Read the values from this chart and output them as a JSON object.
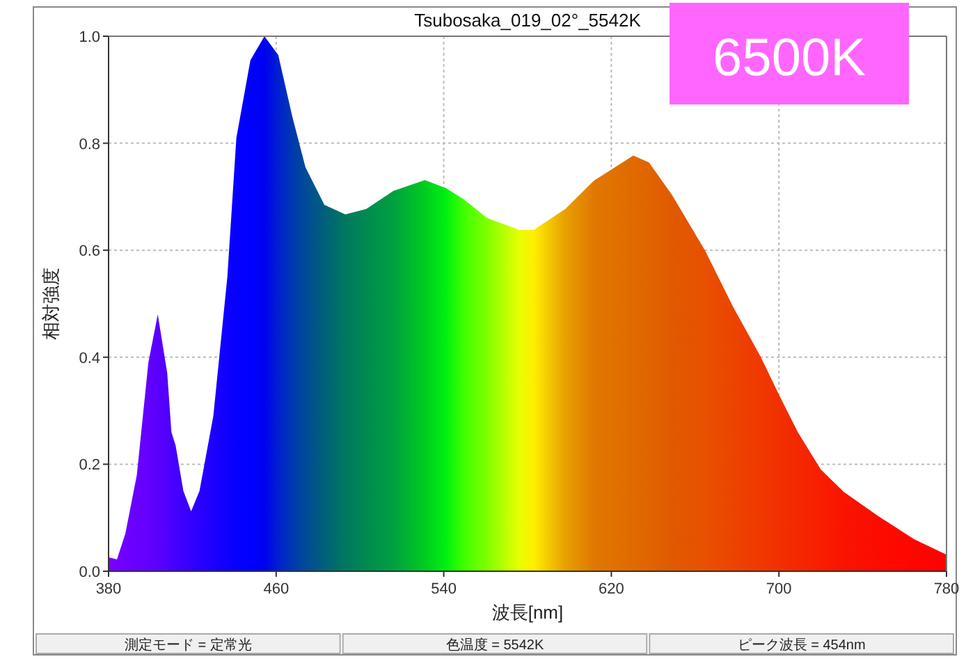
{
  "chart_data": {
    "type": "area",
    "title": "Tsubosaka_019_02°_5542K",
    "xlabel": "波長[nm]",
    "ylabel": "相対強度",
    "annotations": [
      "6500K",
      "測定モード = 定常光",
      "色温度 = 5542K",
      "ピーク波長 = 454nm"
    ],
    "xlim": [
      380,
      780
    ],
    "xticks": [
      380,
      460,
      540,
      620,
      700,
      780
    ],
    "ylim": [
      0,
      1.0
    ],
    "yticks": [
      {
        "value": 0,
        "label": "0.0"
      },
      {
        "value": 0.2,
        "label": "0.2"
      },
      {
        "value": 0.4,
        "label": "0.4"
      },
      {
        "value": 0.6,
        "label": "0.6"
      },
      {
        "value": 0.8,
        "label": "0.8"
      },
      {
        "value": 1.0,
        "label": "1.0"
      }
    ],
    "grid": true,
    "series": [
      {
        "x": [
          380,
          384,
          388,
          393.5,
          399,
          403.5,
          408,
          410,
          412,
          415.7,
          419.4,
          423.4,
          430,
          436.7,
          441,
          447.7,
          454.4,
          461,
          467.7,
          474,
          483,
          493,
          503,
          516,
          531,
          541,
          549.6,
          560.7,
          576,
          583,
          598,
          611.7,
          630.5,
          638,
          649,
          664.8,
          678,
          691.4,
          700,
          709,
          720,
          731,
          747,
          764.5,
          780
        ],
        "values": [
          0.026,
          0.022,
          0.07,
          0.18,
          0.39,
          0.48,
          0.37,
          0.26,
          0.235,
          0.15,
          0.112,
          0.15,
          0.29,
          0.55,
          0.81,
          0.955,
          1.0,
          0.965,
          0.85,
          0.755,
          0.685,
          0.667,
          0.677,
          0.711,
          0.731,
          0.716,
          0.695,
          0.66,
          0.638,
          0.638,
          0.677,
          0.73,
          0.777,
          0.764,
          0.703,
          0.599,
          0.495,
          0.4,
          0.33,
          0.26,
          0.19,
          0.148,
          0.104,
          0.06,
          0.031
        ],
        "colors": [
          "#7a00ff",
          "#7400ff",
          "#6e00ff",
          "#6800ff",
          "#6200ff",
          "#5a00ff",
          "#5000ff",
          "#4a00ff",
          "#4400ff",
          "#3c00ff",
          "#3400ff",
          "#2a00ff",
          "#1c00ff",
          "#0e00ff",
          "#0600ff",
          "#0000ff",
          "#0000f0",
          "#0020d0",
          "#0038b0",
          "#004a98",
          "#00607a",
          "#007860",
          "#008a50",
          "#00a040",
          "#00cc20",
          "#00f010",
          "#40ff00",
          "#80ff00",
          "#e8ff00",
          "#ffee00",
          "#e8a000",
          "#e07800",
          "#e06a00",
          "#e06400",
          "#e05a00",
          "#e85000",
          "#ec4400",
          "#f03800",
          "#f23000",
          "#f42800",
          "#f81e00",
          "#fa1400",
          "#fc0c00",
          "#fe0600",
          "#ff0000"
        ]
      }
    ]
  }
}
